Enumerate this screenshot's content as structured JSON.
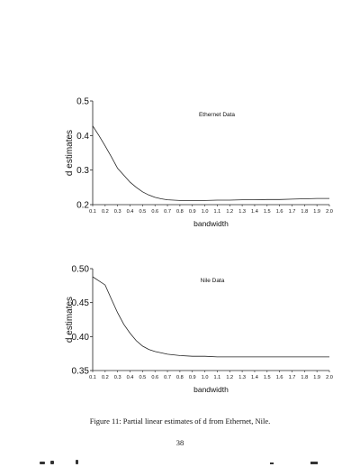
{
  "chart_data": [
    {
      "type": "line",
      "title": "Ethernet Data",
      "xlabel": "bandwidth",
      "ylabel": "d estimates",
      "xlim": [
        0.1,
        2.0
      ],
      "ylim": [
        0.2,
        0.5
      ],
      "xticks": [
        "0.1",
        "0.2",
        "0.3",
        "0.4",
        "0.5",
        "0.6",
        "0.7",
        "0.8",
        "0.9",
        "1.0",
        "1.1",
        "1.2",
        "1.3",
        "1.4",
        "1.5",
        "1.6",
        "1.7",
        "1.8",
        "1.9",
        "2.0"
      ],
      "yticks": [
        "0.2",
        "0.3",
        "0.4",
        "0.5"
      ],
      "grid": false,
      "series": [
        {
          "x": [
            0.1,
            0.15,
            0.2,
            0.25,
            0.3,
            0.35,
            0.4,
            0.45,
            0.5,
            0.55,
            0.6,
            0.65,
            0.7,
            0.75,
            0.8,
            0.9,
            1.0,
            1.1,
            1.2,
            1.3,
            1.4,
            1.5,
            1.6,
            1.7,
            1.8,
            1.9,
            2.0
          ],
          "y": [
            0.428,
            0.4,
            0.37,
            0.338,
            0.305,
            0.285,
            0.265,
            0.25,
            0.237,
            0.228,
            0.221,
            0.217,
            0.214,
            0.213,
            0.212,
            0.212,
            0.212,
            0.213,
            0.213,
            0.214,
            0.214,
            0.215,
            0.215,
            0.216,
            0.217,
            0.218,
            0.218
          ]
        }
      ]
    },
    {
      "type": "line",
      "title": "Nile Data",
      "xlabel": "bandwidth",
      "ylabel": "d estimates",
      "xlim": [
        0.1,
        2.0
      ],
      "ylim": [
        0.35,
        0.5
      ],
      "xticks": [
        "0.1",
        "0.2",
        "0.3",
        "0.4",
        "0.5",
        "0.6",
        "0.7",
        "0.8",
        "0.9",
        "1.0",
        "1.1",
        "1.2",
        "1.3",
        "1.4",
        "1.5",
        "1.6",
        "1.7",
        "1.8",
        "1.9",
        "2.0"
      ],
      "yticks": [
        "0.35",
        "0.40",
        "0.45",
        "0.50"
      ],
      "grid": false,
      "series": [
        {
          "x": [
            0.1,
            0.15,
            0.2,
            0.25,
            0.3,
            0.35,
            0.4,
            0.45,
            0.5,
            0.55,
            0.6,
            0.7,
            0.8,
            0.9,
            1.0,
            1.1,
            1.2,
            1.3,
            1.4,
            1.5,
            1.6,
            1.7,
            1.8,
            1.9,
            2.0
          ],
          "y": [
            0.488,
            0.482,
            0.476,
            0.455,
            0.435,
            0.418,
            0.405,
            0.394,
            0.386,
            0.381,
            0.378,
            0.374,
            0.372,
            0.371,
            0.371,
            0.37,
            0.37,
            0.37,
            0.37,
            0.37,
            0.37,
            0.37,
            0.37,
            0.37,
            0.37
          ]
        }
      ]
    }
  ],
  "caption": "Figure 11: Partial linear estimates of d from Ethernet, Nile.",
  "page_number": "38"
}
